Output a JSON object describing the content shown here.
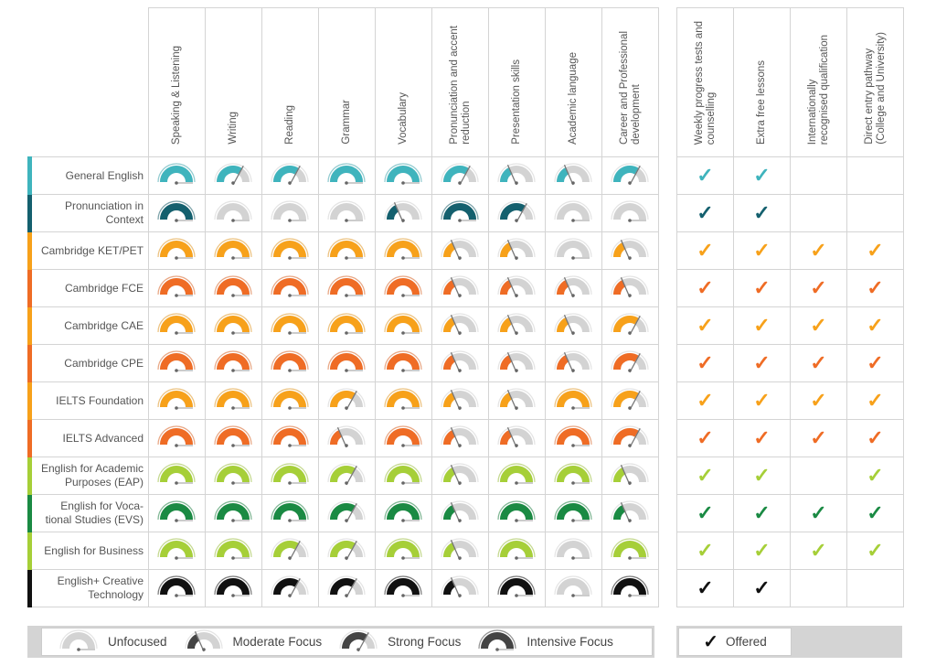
{
  "skills": [
    "Speaking & Listening",
    "Writing",
    "Reading",
    "Grammar",
    "Vocabulary",
    "Pronunciation and accent\nreduction",
    "Presentation skills",
    "Academic language",
    "Career and Professional\ndevelopment"
  ],
  "features": [
    "Weekly progress tests and\ncounselling",
    "Extra free lessons",
    "Internationally\nrecognised qualification",
    "Direct entry pathway\n(College and University)"
  ],
  "courses": [
    {
      "name": "General English",
      "color": "#3fb4bd",
      "levels": [
        3,
        2,
        2,
        3,
        3,
        2,
        1,
        1,
        2
      ],
      "offered": [
        1,
        1,
        0,
        0
      ]
    },
    {
      "name": "Pronunciation in\nContext",
      "color": "#14606e",
      "levels": [
        3,
        0,
        0,
        0,
        1,
        3,
        2,
        0,
        0
      ],
      "offered": [
        1,
        1,
        0,
        0
      ]
    },
    {
      "name": "Cambridge KET/PET",
      "color": "#f7a11a",
      "levels": [
        3,
        3,
        3,
        3,
        3,
        1,
        1,
        0,
        1
      ],
      "offered": [
        1,
        1,
        1,
        1
      ]
    },
    {
      "name": "Cambridge FCE",
      "color": "#ef6c25",
      "levels": [
        3,
        3,
        3,
        3,
        3,
        1,
        1,
        1,
        1
      ],
      "offered": [
        1,
        1,
        1,
        1
      ]
    },
    {
      "name": "Cambridge CAE",
      "color": "#f7a11a",
      "levels": [
        3,
        3,
        3,
        3,
        3,
        1,
        1,
        1,
        2
      ],
      "offered": [
        1,
        1,
        1,
        1
      ]
    },
    {
      "name": "Cambridge CPE",
      "color": "#ef6c25",
      "levels": [
        3,
        3,
        3,
        3,
        3,
        1,
        1,
        1,
        2
      ],
      "offered": [
        1,
        1,
        1,
        1
      ]
    },
    {
      "name": "IELTS Foundation",
      "color": "#f7a11a",
      "levels": [
        3,
        3,
        3,
        2,
        3,
        1,
        1,
        3,
        2
      ],
      "offered": [
        1,
        1,
        1,
        1
      ]
    },
    {
      "name": "IELTS Advanced",
      "color": "#ef6c25",
      "levels": [
        3,
        3,
        3,
        1,
        3,
        1,
        1,
        3,
        2
      ],
      "offered": [
        1,
        1,
        1,
        1
      ]
    },
    {
      "name": "English for Academic\nPurposes (EAP)",
      "color": "#a6cf38",
      "levels": [
        3,
        3,
        3,
        2,
        3,
        1,
        3,
        3,
        1
      ],
      "offered": [
        1,
        1,
        0,
        1
      ]
    },
    {
      "name": "English for Voca-\ntional Studies (EVS)",
      "color": "#1a8a43",
      "levels": [
        3,
        3,
        3,
        2,
        3,
        1,
        3,
        3,
        1
      ],
      "offered": [
        1,
        1,
        1,
        1
      ]
    },
    {
      "name": "English for Business",
      "color": "#a6cf38",
      "levels": [
        3,
        3,
        2,
        2,
        3,
        1,
        3,
        0,
        3
      ],
      "offered": [
        1,
        1,
        1,
        1
      ]
    },
    {
      "name": "English+ Creative\nTechnology",
      "color": "#111111",
      "levels": [
        3,
        3,
        2,
        2,
        3,
        1,
        3,
        0,
        3
      ],
      "offered": [
        1,
        1,
        0,
        0
      ]
    }
  ],
  "legend": {
    "levels": [
      "Unfocused",
      "Moderate Focus",
      "Strong Focus",
      "Intensive Focus"
    ],
    "offered": "Offered",
    "color": "#444444"
  }
}
